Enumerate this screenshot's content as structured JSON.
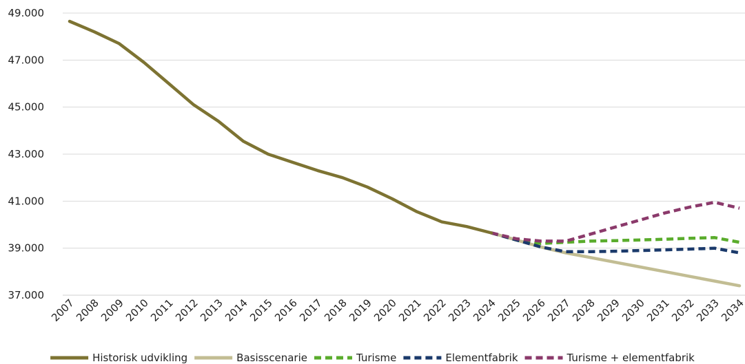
{
  "chart_data": {
    "type": "line",
    "title": "",
    "xlabel": "",
    "ylabel": "",
    "ylim": [
      37000,
      49000
    ],
    "yticks": [
      37000,
      39000,
      41000,
      43000,
      45000,
      47000,
      49000
    ],
    "ytick_labels": [
      "37.000",
      "39.000",
      "41.000",
      "43.000",
      "45.000",
      "47.000",
      "49.000"
    ],
    "grid": "horizontal",
    "legend_position": "bottom",
    "x": [
      "2007",
      "2008",
      "2009",
      "2010",
      "2011",
      "2012",
      "2013",
      "2014",
      "2015",
      "2016",
      "2017",
      "2018",
      "2019",
      "2020",
      "2021",
      "2022",
      "2023",
      "2024",
      "2025",
      "2026",
      "2027",
      "2028",
      "2029",
      "2030",
      "2031",
      "2032",
      "2033",
      "2034"
    ],
    "series": [
      {
        "name": "Historisk udvikling",
        "color": "#7d7332",
        "style": "solid",
        "values": [
          48650,
          48200,
          47700,
          46900,
          46000,
          45100,
          44400,
          43550,
          43000,
          42650,
          42300,
          42000,
          41600,
          41100,
          40550,
          40120,
          39920,
          39650,
          null,
          null,
          null,
          null,
          null,
          null,
          null,
          null,
          null,
          null
        ]
      },
      {
        "name": "Basisscenarie",
        "color": "#c2bd93",
        "style": "solid",
        "values": [
          null,
          null,
          null,
          null,
          null,
          null,
          null,
          null,
          null,
          null,
          null,
          null,
          null,
          null,
          null,
          null,
          null,
          39650,
          39350,
          39050,
          38800,
          38600,
          38400,
          38200,
          38000,
          37800,
          37600,
          37400
        ]
      },
      {
        "name": "Turisme",
        "color": "#5aac2c",
        "style": "dashed",
        "values": [
          null,
          null,
          null,
          null,
          null,
          null,
          null,
          null,
          null,
          null,
          null,
          null,
          null,
          null,
          null,
          null,
          null,
          39650,
          39350,
          39200,
          39250,
          39300,
          39320,
          39350,
          39380,
          39420,
          39450,
          39250
        ]
      },
      {
        "name": "Elementfabrik",
        "color": "#1b3a6b",
        "style": "dashed",
        "values": [
          null,
          null,
          null,
          null,
          null,
          null,
          null,
          null,
          null,
          null,
          null,
          null,
          null,
          null,
          null,
          null,
          null,
          39650,
          39350,
          39050,
          38850,
          38850,
          38870,
          38900,
          38930,
          38960,
          39000,
          38800
        ]
      },
      {
        "name": "Turisme + elementfabrik",
        "color": "#8b3a6b",
        "style": "dashed",
        "values": [
          null,
          null,
          null,
          null,
          null,
          null,
          null,
          null,
          null,
          null,
          null,
          null,
          null,
          null,
          null,
          null,
          null,
          39650,
          39400,
          39300,
          39300,
          39600,
          39900,
          40200,
          40500,
          40750,
          40950,
          40700
        ]
      }
    ]
  }
}
